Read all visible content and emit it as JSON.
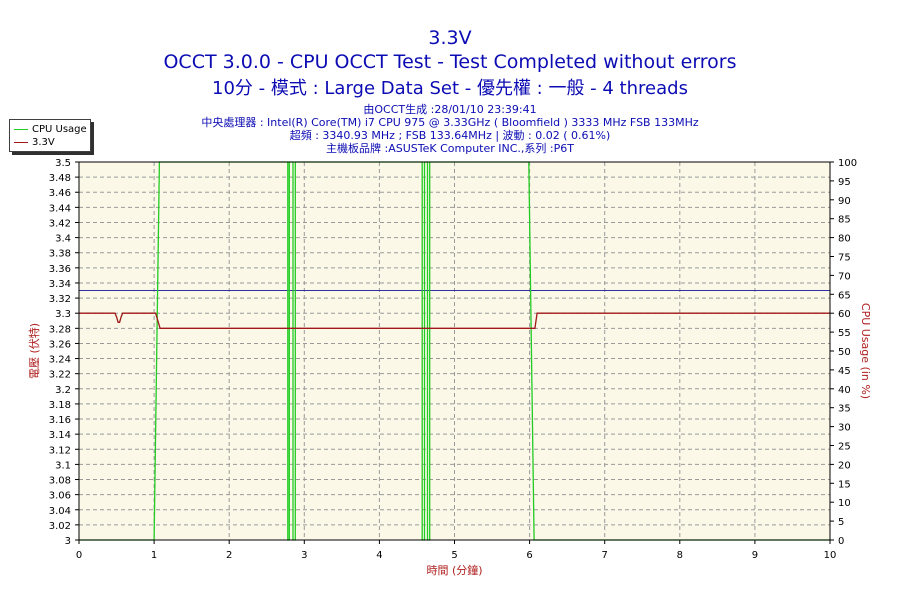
{
  "header": {
    "title": "3.3V",
    "line2": "OCCT 3.0.0 - CPU OCCT Test - Test Completed without errors",
    "line3": "10分 - 模式 : Large Data Set - 優先權 : 一般 - 4 threads"
  },
  "info": {
    "generated": "由OCCT生成 :28/01/10 23:39:41",
    "cpu": "中央處理器 : Intel(R) Core(TM) i7 CPU 975 @ 3.33GHz ( Bloomfield ) 3333 MHz FSB 133MHz",
    "oc": "超頻 : 3340.93 MHz ; FSB 133.64MHz | 波動 : 0.02 ( 0.61%)",
    "board": "主機板品牌 :ASUSTeK Computer INC.,系列 :P6T"
  },
  "colors": {
    "title": "#0c0cb4",
    "plot_bg": "#fbf8e8",
    "grid": "#9a9a9a",
    "cpu_usage": "#22cc22",
    "voltage": "#a01818",
    "reference": "#3030a0",
    "axis_label": "#b02020"
  },
  "chart_data": {
    "type": "line",
    "xlabel": "時間 (分鐘)",
    "ylabel": "電壓 (伏特)",
    "y2label": "CPU Usage (in %)",
    "xlim": [
      0,
      10
    ],
    "ylim": [
      3.0,
      3.5
    ],
    "y2lim": [
      0,
      100
    ],
    "x_ticks": [
      0,
      1,
      2,
      3,
      4,
      5,
      6,
      7,
      8,
      9,
      10
    ],
    "y_ticks": [
      "3.5",
      "3.48",
      "3.46",
      "3.44",
      "3.42",
      "3.4",
      "3.38",
      "3.36",
      "3.34",
      "3.32",
      "3.3",
      "3.28",
      "3.26",
      "3.24",
      "3.22",
      "3.2",
      "3.18",
      "3.16",
      "3.14",
      "3.12",
      "3.1",
      "3.08",
      "3.06",
      "3.04",
      "3.02",
      "3"
    ],
    "y2_ticks": [
      "100",
      "95",
      "90",
      "85",
      "80",
      "75",
      "70",
      "65",
      "60",
      "55",
      "50",
      "45",
      "40",
      "35",
      "30",
      "25",
      "20",
      "15",
      "10",
      "5",
      "0"
    ],
    "grid": true,
    "legend_position": "top-left",
    "reference_line": 3.33,
    "series": [
      {
        "name": "CPU Usage",
        "axis": "right",
        "x": [
          0,
          1,
          1.0,
          1.07,
          1.07,
          2.78,
          2.78,
          2.8,
          2.8,
          2.85,
          2.85,
          2.88,
          2.88,
          4.57,
          4.57,
          4.6,
          4.6,
          4.64,
          4.64,
          4.67,
          4.67,
          5.99,
          5.99,
          6.06,
          6.06,
          10
        ],
        "y": [
          0,
          0,
          0,
          100,
          100,
          100,
          0,
          0,
          100,
          100,
          0,
          0,
          100,
          100,
          0,
          0,
          100,
          100,
          0,
          0,
          100,
          100,
          100,
          0,
          0,
          0
        ]
      },
      {
        "name": "3.3V",
        "axis": "left",
        "x": [
          0,
          0.48,
          0.5,
          0.52,
          0.54,
          0.56,
          0.58,
          1.02,
          1.08,
          6.07,
          6.1,
          10
        ],
        "y": [
          3.3,
          3.3,
          3.295,
          3.288,
          3.288,
          3.295,
          3.3,
          3.3,
          3.28,
          3.28,
          3.3,
          3.3
        ]
      }
    ]
  }
}
